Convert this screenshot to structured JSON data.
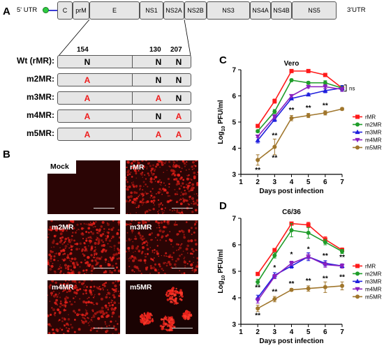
{
  "panels": {
    "a": "A",
    "b": "B",
    "c": "C",
    "d": "D"
  },
  "genome": {
    "utr5": "5' UTR",
    "utr3": "3'UTR",
    "genes": [
      {
        "label": "C"
      },
      {
        "label": "prM"
      },
      {
        "label": "E"
      },
      {
        "label": "NS1"
      },
      {
        "label": "NS2A"
      },
      {
        "label": "NS2B"
      },
      {
        "label": "NS3"
      },
      {
        "label": "NS4A"
      },
      {
        "label": "NS4B"
      },
      {
        "label": "NS5"
      }
    ]
  },
  "mutants": {
    "positions": [
      "154",
      "130",
      "207"
    ],
    "rows": [
      {
        "label": "Wt (rMR):",
        "res": [
          "N",
          "N",
          "N"
        ],
        "mut": [
          false,
          false,
          false
        ]
      },
      {
        "label": "m2MR:",
        "res": [
          "A",
          "N",
          "N"
        ],
        "mut": [
          true,
          false,
          false
        ]
      },
      {
        "label": "m3MR:",
        "res": [
          "A",
          "A",
          "N"
        ],
        "mut": [
          true,
          true,
          false
        ]
      },
      {
        "label": "m4MR:",
        "res": [
          "A",
          "N",
          "A"
        ],
        "mut": [
          true,
          false,
          true
        ]
      },
      {
        "label": "m5MR:",
        "res": [
          "A",
          "A",
          "A"
        ],
        "mut": [
          true,
          true,
          true
        ]
      }
    ]
  },
  "micrographs": [
    {
      "label": "Mock"
    },
    {
      "label": "rMR"
    },
    {
      "label": "m2MR"
    },
    {
      "label": "m3MR"
    },
    {
      "label": "m4MR"
    },
    {
      "label": "m5MR"
    }
  ],
  "colors": {
    "rMR": "#ff1a1a",
    "m2MR": "#1f9d2a",
    "m3MR": "#1f1fdd",
    "m4MR": "#8a1fbf",
    "m5MR": "#a0762c",
    "mut": "#ee1c1c",
    "genome_line": "#3b3bd6",
    "utr_dot": "#2ecc40"
  },
  "chart_data": [
    {
      "type": "line",
      "title": "Vero",
      "xlabel": "Days post infection",
      "ylabel": "Log10 PFU/ml",
      "ylabel_main": "Log",
      "ylabel_sub": "10",
      "ylabel_rest": " PFU/ml",
      "x": [
        2,
        3,
        4,
        5,
        6,
        7
      ],
      "xlim": [
        1,
        7
      ],
      "ylim": [
        3,
        7
      ],
      "xticks": [
        "1",
        "2",
        "3",
        "4",
        "5",
        "6",
        "7"
      ],
      "yticks": [
        "3",
        "4",
        "5",
        "6",
        "7"
      ],
      "series": [
        {
          "name": "rMR",
          "values": [
            4.85,
            5.8,
            6.95,
            6.95,
            6.8,
            6.3
          ],
          "err": [
            0.05,
            0.08,
            0.05,
            0.05,
            0.05,
            0.08
          ]
        },
        {
          "name": "m2MR",
          "values": [
            4.65,
            5.4,
            6.6,
            6.5,
            6.5,
            6.3
          ],
          "err": [
            0.05,
            0.08,
            0.05,
            0.05,
            0.08,
            0.08
          ]
        },
        {
          "name": "m3MR",
          "values": [
            4.3,
            5.1,
            5.9,
            6.05,
            6.2,
            6.3
          ],
          "err": [
            0.1,
            0.08,
            0.05,
            0.05,
            0.08,
            0.1
          ]
        },
        {
          "name": "m4MR",
          "values": [
            4.45,
            5.2,
            6.0,
            6.35,
            6.35,
            6.25
          ],
          "err": [
            0.05,
            0.08,
            0.05,
            0.05,
            0.08,
            0.08
          ]
        },
        {
          "name": "m5MR",
          "values": [
            3.55,
            4.05,
            5.15,
            5.25,
            5.35,
            5.5
          ],
          "err": [
            0.2,
            0.3,
            0.1,
            0.08,
            0.08,
            0.05
          ]
        }
      ],
      "annotations": [
        {
          "x": 2,
          "y": 3.08,
          "text": "**"
        },
        {
          "x": 3,
          "y": 4.4,
          "text": "**"
        },
        {
          "x": 3,
          "y": 3.55,
          "text": "**"
        },
        {
          "x": 4,
          "y": 5.38,
          "text": "**"
        },
        {
          "x": 5,
          "y": 5.45,
          "text": "**"
        },
        {
          "x": 6,
          "y": 5.55,
          "text": "**"
        }
      ],
      "bracket_label": "ns",
      "legend": "right"
    },
    {
      "type": "line",
      "title": "C6/36",
      "xlabel": "Days post infection",
      "ylabel": "Log10 PFU/ml",
      "ylabel_main": "Log",
      "ylabel_sub": "10",
      "ylabel_rest": " PFU/ml",
      "x": [
        2,
        3,
        4,
        5,
        6,
        7
      ],
      "xlim": [
        1,
        7
      ],
      "ylim": [
        3,
        7
      ],
      "xticks": [
        "1",
        "2",
        "3",
        "4",
        "5",
        "6",
        "7"
      ],
      "yticks": [
        "3",
        "4",
        "5",
        "6",
        "7"
      ],
      "series": [
        {
          "name": "rMR",
          "values": [
            4.9,
            5.8,
            6.8,
            6.75,
            6.2,
            5.8
          ],
          "err": [
            0.05,
            0.05,
            0.05,
            0.1,
            0.1,
            0.08
          ]
        },
        {
          "name": "m2MR",
          "values": [
            4.6,
            5.6,
            6.55,
            6.45,
            6.1,
            5.75
          ],
          "err": [
            0.1,
            0.1,
            0.25,
            0.2,
            0.1,
            0.08
          ]
        },
        {
          "name": "m3MR",
          "values": [
            4.0,
            4.85,
            5.2,
            5.55,
            5.3,
            5.2
          ],
          "err": [
            0.1,
            0.1,
            0.08,
            0.15,
            0.1,
            0.08
          ]
        },
        {
          "name": "m4MR",
          "values": [
            3.9,
            4.8,
            5.3,
            5.55,
            5.25,
            5.2
          ],
          "err": [
            0.1,
            0.08,
            0.08,
            0.1,
            0.1,
            0.08
          ]
        },
        {
          "name": "m5MR",
          "values": [
            3.6,
            3.95,
            4.3,
            4.35,
            4.4,
            4.45
          ],
          "err": [
            0.12,
            0.1,
            0.05,
            0.1,
            0.2,
            0.15
          ]
        }
      ],
      "annotations": [
        {
          "x": 2,
          "y": 3.25,
          "text": "**"
        },
        {
          "x": 2,
          "y": 4.3,
          "text": "**"
        },
        {
          "x": 3,
          "y": 4.15,
          "text": "**"
        },
        {
          "x": 3,
          "y": 5.05,
          "text": "*"
        },
        {
          "x": 4,
          "y": 4.45,
          "text": "**"
        },
        {
          "x": 4,
          "y": 5.55,
          "text": "*"
        },
        {
          "x": 5,
          "y": 4.55,
          "text": "**"
        },
        {
          "x": 5,
          "y": 5.75,
          "text": "*"
        },
        {
          "x": 6,
          "y": 4.65,
          "text": "**"
        },
        {
          "x": 6,
          "y": 5.5,
          "text": "**"
        },
        {
          "x": 7,
          "y": 4.7,
          "text": "**"
        },
        {
          "x": 7,
          "y": 5.45,
          "text": "**"
        }
      ],
      "legend": "right"
    }
  ]
}
